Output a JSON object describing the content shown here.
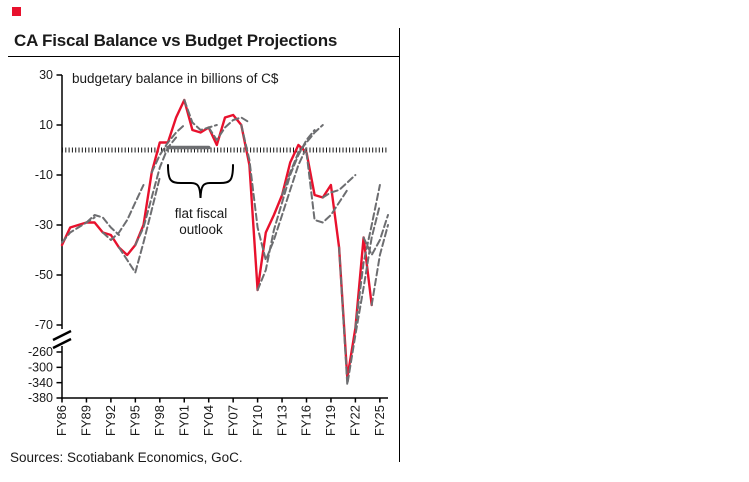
{
  "header": {
    "accent_color": "#e8112d"
  },
  "footer": {
    "sources": "Sources: Scotiabank Economics, GoC."
  },
  "chart_data": {
    "type": "line",
    "title": "CA Fiscal Balance vs Budget Projections",
    "subtitle": "budgetary balance in billions of C$",
    "annotation": {
      "line1": "flat fiscal",
      "line2": "outlook"
    },
    "legend": "none",
    "grid": false,
    "colors": {
      "actual": "#e8112d",
      "projection": "#6d6e71",
      "axis": "#000000"
    },
    "x_axis": {
      "range": [
        1986,
        2026
      ],
      "ticks": [
        [
          1986,
          "FY86"
        ],
        [
          1989,
          "FY89"
        ],
        [
          1992,
          "FY92"
        ],
        [
          1995,
          "FY95"
        ],
        [
          1998,
          "FY98"
        ],
        [
          2001,
          "FY01"
        ],
        [
          2004,
          "FY04"
        ],
        [
          2007,
          "FY07"
        ],
        [
          2010,
          "FY10"
        ],
        [
          2013,
          "FY13"
        ],
        [
          2016,
          "FY16"
        ],
        [
          2019,
          "FY19"
        ],
        [
          2022,
          "FY22"
        ],
        [
          2025,
          "FY25"
        ]
      ]
    },
    "y_axis": {
      "unit": "billions of C$",
      "top_ticks": [
        30,
        10,
        -10,
        -30,
        -50,
        -70
      ],
      "bottom_ticks": [
        -260,
        -300,
        -340,
        -380
      ],
      "has_break": true,
      "zero_line": 0
    },
    "series": [
      {
        "name": "actual-balance",
        "color": "actual",
        "dash": false,
        "width": 2.4,
        "points": [
          [
            1986,
            -38
          ],
          [
            1987,
            -31
          ],
          [
            1988,
            -30
          ],
          [
            1989,
            -29
          ],
          [
            1990,
            -29
          ],
          [
            1991,
            -33
          ],
          [
            1992,
            -34
          ],
          [
            1993,
            -39
          ],
          [
            1994,
            -42
          ],
          [
            1995,
            -38
          ],
          [
            1996,
            -30
          ],
          [
            1997,
            -9
          ],
          [
            1998,
            3
          ],
          [
            1999,
            3
          ],
          [
            2000,
            13
          ],
          [
            2001,
            20
          ],
          [
            2002,
            8
          ],
          [
            2003,
            7
          ],
          [
            2004,
            9
          ],
          [
            2005,
            2
          ],
          [
            2006,
            13
          ],
          [
            2007,
            14
          ],
          [
            2008,
            10
          ],
          [
            2009,
            -6
          ],
          [
            2010,
            -56
          ],
          [
            2011,
            -33
          ],
          [
            2012,
            -26
          ],
          [
            2013,
            -18
          ],
          [
            2014,
            -5
          ],
          [
            2015,
            2
          ],
          [
            2016,
            -1
          ],
          [
            2017,
            -18
          ],
          [
            2018,
            -19
          ],
          [
            2019,
            -14
          ],
          [
            2020,
            -39
          ],
          [
            2021,
            -328
          ],
          [
            2022,
            -92
          ],
          [
            2023,
            -35
          ],
          [
            2024,
            -62
          ]
        ]
      },
      {
        "name": "projection-01",
        "color": "projection",
        "dash": true,
        "width": 2,
        "points": [
          [
            1986,
            -37
          ],
          [
            1987,
            -33
          ],
          [
            1988,
            -31
          ],
          [
            1989,
            -29
          ],
          [
            1990,
            -27
          ]
        ]
      },
      {
        "name": "projection-02",
        "color": "projection",
        "dash": true,
        "width": 2,
        "points": [
          [
            1989,
            -29
          ],
          [
            1990,
            -26
          ],
          [
            1991,
            -27
          ],
          [
            1992,
            -31
          ],
          [
            1993,
            -34
          ]
        ]
      },
      {
        "name": "projection-03",
        "color": "projection",
        "dash": true,
        "width": 2,
        "points": [
          [
            1991,
            -33
          ],
          [
            1992,
            -36
          ],
          [
            1993,
            -33
          ],
          [
            1994,
            -28
          ],
          [
            1995,
            -21
          ],
          [
            1996,
            -14
          ]
        ]
      },
      {
        "name": "projection-04",
        "color": "projection",
        "dash": true,
        "width": 2,
        "points": [
          [
            1993,
            -39
          ],
          [
            1994,
            -44
          ],
          [
            1995,
            -49
          ],
          [
            1996,
            -37
          ],
          [
            1997,
            -24
          ],
          [
            1998,
            -11
          ]
        ]
      },
      {
        "name": "projection-05",
        "color": "projection",
        "dash": true,
        "width": 2,
        "points": [
          [
            1995,
            -38
          ],
          [
            1996,
            -31
          ],
          [
            1997,
            -19
          ],
          [
            1998,
            -7
          ],
          [
            1999,
            1
          ],
          [
            2000,
            5
          ]
        ]
      },
      {
        "name": "projection-06",
        "color": "projection",
        "dash": true,
        "width": 2,
        "points": [
          [
            1997,
            -9
          ],
          [
            1998,
            -2
          ],
          [
            1999,
            3
          ],
          [
            2000,
            7
          ],
          [
            2001,
            10
          ]
        ]
      },
      {
        "name": "projection-flat-outlook",
        "color": "projection",
        "dash": false,
        "width": 3.5,
        "points": [
          [
            1999,
            1
          ],
          [
            2000,
            1
          ],
          [
            2001,
            1
          ],
          [
            2002,
            1
          ],
          [
            2003,
            1
          ],
          [
            2004,
            1
          ]
        ]
      },
      {
        "name": "projection-07",
        "color": "projection",
        "dash": true,
        "width": 2,
        "points": [
          [
            2001,
            20
          ],
          [
            2002,
            11
          ],
          [
            2003,
            8
          ],
          [
            2004,
            9
          ],
          [
            2005,
            10
          ]
        ]
      },
      {
        "name": "projection-08",
        "color": "projection",
        "dash": true,
        "width": 2,
        "points": [
          [
            2004,
            9
          ],
          [
            2005,
            4
          ],
          [
            2006,
            9
          ],
          [
            2007,
            12
          ],
          [
            2008,
            13
          ],
          [
            2009,
            11
          ]
        ]
      },
      {
        "name": "projection-09",
        "color": "projection",
        "dash": true,
        "width": 2,
        "points": [
          [
            2008,
            10
          ],
          [
            2009,
            -4
          ],
          [
            2010,
            -31
          ],
          [
            2011,
            -44
          ],
          [
            2012,
            -36
          ],
          [
            2013,
            -26
          ],
          [
            2014,
            -16
          ],
          [
            2015,
            -6
          ],
          [
            2016,
            1
          ]
        ]
      },
      {
        "name": "projection-10",
        "color": "projection",
        "dash": true,
        "width": 2,
        "points": [
          [
            2010,
            -56
          ],
          [
            2011,
            -48
          ],
          [
            2012,
            -32
          ],
          [
            2013,
            -21
          ],
          [
            2014,
            -10
          ],
          [
            2015,
            -2
          ],
          [
            2016,
            4
          ],
          [
            2017,
            8
          ]
        ]
      },
      {
        "name": "projection-11",
        "color": "projection",
        "dash": true,
        "width": 2,
        "points": [
          [
            2013,
            -18
          ],
          [
            2014,
            -9
          ],
          [
            2015,
            -1
          ],
          [
            2016,
            3
          ],
          [
            2017,
            7
          ],
          [
            2018,
            10
          ]
        ]
      },
      {
        "name": "projection-12",
        "color": "projection",
        "dash": true,
        "width": 2,
        "points": [
          [
            2016,
            -1
          ],
          [
            2017,
            -28
          ],
          [
            2018,
            -29
          ],
          [
            2019,
            -26
          ],
          [
            2020,
            -21
          ],
          [
            2021,
            -16
          ]
        ]
      },
      {
        "name": "projection-13",
        "color": "projection",
        "dash": true,
        "width": 2,
        "points": [
          [
            2018,
            -19
          ],
          [
            2019,
            -17
          ],
          [
            2020,
            -16
          ],
          [
            2021,
            -13
          ],
          [
            2022,
            -10
          ]
        ]
      },
      {
        "name": "projection-14",
        "color": "projection",
        "dash": true,
        "width": 2,
        "points": [
          [
            2020,
            -39
          ],
          [
            2021,
            -345
          ],
          [
            2022,
            -140
          ],
          [
            2023,
            -55
          ],
          [
            2024,
            -35
          ],
          [
            2025,
            -22
          ]
        ]
      },
      {
        "name": "projection-15",
        "color": "projection",
        "dash": true,
        "width": 2,
        "points": [
          [
            2022,
            -92
          ],
          [
            2023,
            -45
          ],
          [
            2024,
            -30
          ],
          [
            2025,
            -14
          ]
        ]
      },
      {
        "name": "projection-16",
        "color": "projection",
        "dash": true,
        "width": 2,
        "points": [
          [
            2023,
            -35
          ],
          [
            2024,
            -42
          ],
          [
            2025,
            -36
          ],
          [
            2026,
            -26
          ]
        ]
      },
      {
        "name": "projection-17",
        "color": "projection",
        "dash": true,
        "width": 2,
        "points": [
          [
            2024,
            -62
          ],
          [
            2025,
            -42
          ],
          [
            2026,
            -30
          ]
        ]
      }
    ]
  }
}
